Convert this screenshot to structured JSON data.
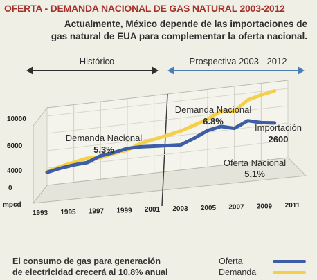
{
  "title": "OFERTA - DEMANDA NACIONAL DE GAS NATURAL 2003-2012",
  "subtitle_line1": "Actualmente, México depende de las importaciones de",
  "subtitle_line2": "gas natural de EUA para complementar la oferta nacional.",
  "periods": {
    "historic": "Histórico",
    "forecast": "Prospectiva 2003 - 2012"
  },
  "footnote_line1": "El consumo de gas para generación",
  "footnote_line2": "de electricidad crecerá al 10.8% anual",
  "colors": {
    "oferta": "#3d5ea6",
    "demanda": "#f5cf4a",
    "title": "#a6312b"
  },
  "chart_data": {
    "type": "line",
    "xlabel": "",
    "ylabel": "mpcd",
    "x_ticks": [
      "1993",
      "1995",
      "1997",
      "1999",
      "2001",
      "2003",
      "2005",
      "2007",
      "2009",
      "2011"
    ],
    "y_ticks": [
      "10000",
      "8000",
      "6000",
      "4000",
      "0"
    ],
    "x": [
      1993,
      1994,
      1995,
      1996,
      1997,
      1998,
      1999,
      2000,
      2001,
      2002,
      2003,
      2004,
      2005,
      2006,
      2007,
      2008,
      2009,
      2010
    ],
    "series": [
      {
        "name": "Oferta",
        "values": [
          3500,
          3800,
          4000,
          4100,
          4700,
          4900,
          5200,
          5200,
          5100,
          5000,
          4900,
          5500,
          6200,
          6500,
          6100,
          6800,
          6400,
          6200
        ]
      },
      {
        "name": "Demanda",
        "values": [
          3600,
          4000,
          4300,
          4600,
          4500,
          4800,
          5000,
          5600,
          5900,
          6200,
          6500,
          7000,
          7500,
          8300,
          8100,
          9200,
          9600,
          9900
        ]
      }
    ],
    "annotations": [
      {
        "label": "Demanda Nacional",
        "value": "5.3%"
      },
      {
        "label": "Demanda Nacional",
        "value": "6.8%"
      },
      {
        "label": "Importación",
        "value": "2600"
      },
      {
        "label": "Oferta Nacional",
        "value": "5.1%"
      }
    ],
    "legend": "bottom-right"
  }
}
